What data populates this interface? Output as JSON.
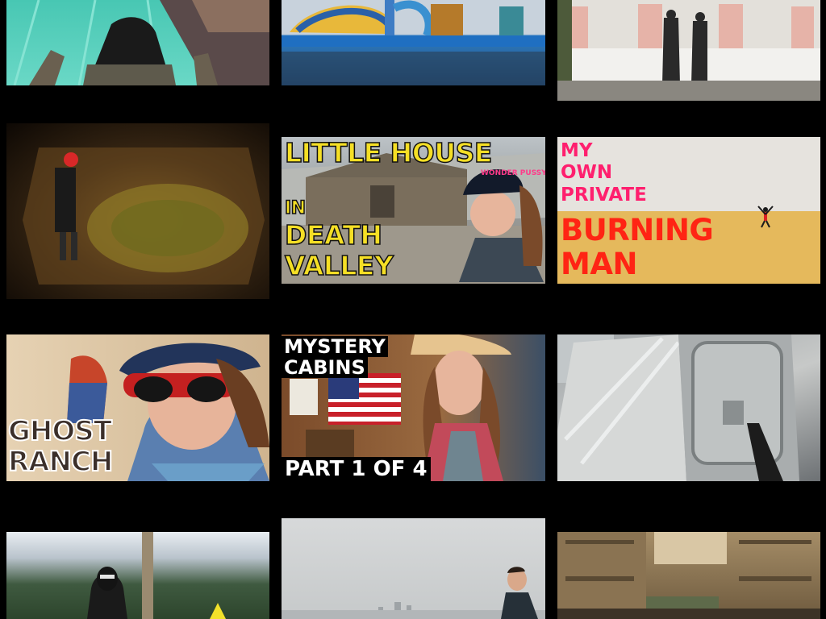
{
  "thumbnails": [
    {
      "id": "waterslide-rooftop",
      "overlay": []
    },
    {
      "id": "abandoned-waterpark",
      "overlay": []
    },
    {
      "id": "castle-couple",
      "overlay": []
    },
    {
      "id": "underground-cave",
      "overlay": []
    },
    {
      "id": "little-house-death-valley",
      "overlay": [
        "LITTLE HOUSE",
        "IN",
        "DEATH",
        "VALLEY"
      ],
      "hat_text": "WONDER PUSSY"
    },
    {
      "id": "my-own-private-burning-man",
      "overlay": [
        "MY",
        "OWN",
        "PRIVATE",
        "BURNING",
        "MAN"
      ]
    },
    {
      "id": "ghost-ranch",
      "overlay": [
        "GHOST",
        "RANCH"
      ]
    },
    {
      "id": "mystery-cabins",
      "overlay": [
        "MYSTERY",
        "CABINS",
        "PART 1 OF 4"
      ]
    },
    {
      "id": "ship-hatch",
      "overlay": []
    },
    {
      "id": "tower-ninja",
      "overlay": []
    },
    {
      "id": "foggy-city",
      "overlay": []
    },
    {
      "id": "abandoned-bunks",
      "overlay": []
    }
  ],
  "colors": {
    "background": "#000000",
    "death_valley_yellow": "#f5df25",
    "burning_man_pink": "#ff1f6e",
    "burning_man_red": "#ff2414"
  }
}
